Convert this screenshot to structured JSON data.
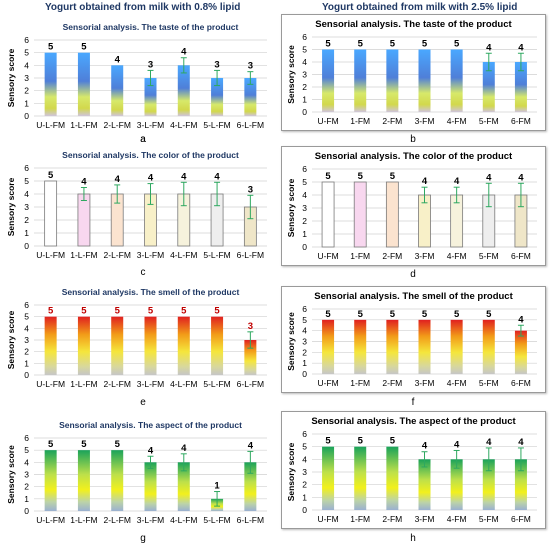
{
  "column_titles": {
    "left": "Yogurt obtained from milk with 0.8% lipid",
    "right": "Yogurt obtained from milk with 2.5% lipid"
  },
  "chart_data": [
    {
      "panel": "a",
      "type": "bar",
      "title": "Sensorial analysis.  The taste of the product",
      "ylabel": "Sensory score",
      "ylim": [
        0,
        6
      ],
      "grid": true,
      "categories": [
        "U-L-FM",
        "1-L-FM",
        "2-L-FM",
        "3-L-FM",
        "4-L-FM",
        "5-L-FM",
        "6-L-FM"
      ],
      "values": [
        5,
        5,
        4,
        3,
        4,
        3,
        3
      ],
      "errors": [
        0,
        0,
        0,
        0.6,
        0.6,
        0.6,
        0.5
      ],
      "value_labels": [
        "5",
        "5",
        "4",
        "3",
        "4",
        "3",
        "3"
      ],
      "fill": "taste"
    },
    {
      "panel": "b",
      "type": "bar",
      "title": "Sensorial analysis.  The taste of the product",
      "ylabel": "Sensory score",
      "ylim": [
        0,
        6
      ],
      "grid": true,
      "categories": [
        "U-FM",
        "1-FM",
        "2-FM",
        "3-FM",
        "4-FM",
        "5-FM",
        "6-FM"
      ],
      "values": [
        5,
        5,
        5,
        5,
        5,
        4,
        4
      ],
      "errors": [
        0,
        0,
        0,
        0,
        0,
        0.7,
        0.7
      ],
      "value_labels": [
        "5",
        "5",
        "5",
        "5",
        "5",
        "4",
        "4"
      ],
      "fill": "taste"
    },
    {
      "panel": "c",
      "type": "bar",
      "title": "Sensorial analysis.  The color of the product",
      "ylabel": "Sensory score",
      "ylim": [
        0,
        6
      ],
      "grid": true,
      "categories": [
        "U-L-FM",
        "1-L-FM",
        "2-L-FM",
        "3-L-FM",
        "4-L-FM",
        "5-L-FM",
        "6-L-FM"
      ],
      "values": [
        5,
        4,
        4,
        4,
        4,
        4,
        3
      ],
      "errors": [
        0,
        0.5,
        0.7,
        0.8,
        0.9,
        0.9,
        0.9
      ],
      "value_labels": [
        "5",
        "4",
        "4",
        "4",
        "4",
        "4",
        "3"
      ],
      "fill": "color"
    },
    {
      "panel": "d",
      "type": "bar",
      "title": "Sensorial analysis. The color of the product",
      "ylabel": "Sensory score",
      "ylim": [
        0,
        6
      ],
      "grid": true,
      "categories": [
        "U-FM",
        "1-FM",
        "2-FM",
        "3-FM",
        "4-FM",
        "5-FM",
        "6-FM"
      ],
      "values": [
        5,
        5,
        5,
        4,
        4,
        4,
        4
      ],
      "errors": [
        0,
        0,
        0,
        0.6,
        0.6,
        0.9,
        0.9
      ],
      "value_labels": [
        "5",
        "5",
        "5",
        "4",
        "4",
        "4",
        "4"
      ],
      "fill": "color"
    },
    {
      "panel": "e",
      "type": "bar",
      "title": "Sensorial analysis.  The smell of the product",
      "ylabel": "Sensory score",
      "ylim": [
        0,
        6
      ],
      "grid": true,
      "categories": [
        "U-L-FM",
        "1-L-FM",
        "2-L-FM",
        "3-L-FM",
        "4-L-FM",
        "5-L-FM",
        "6-L-FM"
      ],
      "values": [
        5,
        5,
        5,
        5,
        5,
        5,
        3
      ],
      "errors": [
        0,
        0,
        0,
        0,
        0,
        0,
        0.7
      ],
      "value_labels": [
        "5",
        "5",
        "5",
        "5",
        "5",
        "5",
        "3"
      ],
      "fill": "smell"
    },
    {
      "panel": "f",
      "type": "bar",
      "title": "Sensorial analysis. The smell of the product",
      "ylabel": "Sensory score",
      "ylim": [
        0,
        6
      ],
      "grid": true,
      "categories": [
        "U-FM",
        "1-FM",
        "2-FM",
        "3-FM",
        "4-FM",
        "5-FM",
        "6-FM"
      ],
      "values": [
        5,
        5,
        5,
        5,
        5,
        5,
        4
      ],
      "errors": [
        0,
        0,
        0,
        0,
        0,
        0,
        0.5
      ],
      "value_labels": [
        "5",
        "5",
        "5",
        "5",
        "5",
        "5",
        "4"
      ],
      "fill": "smell"
    },
    {
      "panel": "g",
      "type": "bar",
      "title": "Sensorial analysis.  The aspect of the product",
      "ylabel": "Sensory score",
      "ylim": [
        0,
        6
      ],
      "grid": true,
      "categories": [
        "U-L-FM",
        "1-L-FM",
        "2-L-FM",
        "3-L-FM",
        "4-L-FM",
        "5-L-FM",
        "6-L-FM"
      ],
      "values": [
        5,
        5,
        5,
        4,
        4,
        1,
        4
      ],
      "errors": [
        0,
        0,
        0,
        0.5,
        0.7,
        0.6,
        0.9
      ],
      "value_labels": [
        "5",
        "5",
        "5",
        "4",
        "4",
        "1",
        "4"
      ],
      "fill": "aspect"
    },
    {
      "panel": "h",
      "type": "bar",
      "title": "Sensorial analysis. The aspect of the product",
      "ylabel": "Sensory score",
      "ylim": [
        0,
        6
      ],
      "grid": true,
      "categories": [
        "U-FM",
        "1-FM",
        "2-FM",
        "3-FM",
        "4-FM",
        "5-FM",
        "6-FM"
      ],
      "values": [
        5,
        5,
        5,
        4,
        4,
        4,
        4
      ],
      "errors": [
        0,
        0,
        0,
        0.6,
        0.7,
        0.9,
        0.9
      ],
      "value_labels": [
        "5",
        "5",
        "5",
        "4",
        "4",
        "4",
        "4"
      ],
      "fill": "aspect"
    }
  ],
  "colors": {
    "title": "#1f3864",
    "error_bar": "#2ea860",
    "grid": "#d0d0d0",
    "smell_value_label": "#c00000",
    "color_bar_fills": [
      "#ffffff",
      "#f8d7ef",
      "#fbe3cf",
      "#f8f0c8",
      "#f6f2dc",
      "#eeeeee",
      "#efe6c8"
    ]
  }
}
